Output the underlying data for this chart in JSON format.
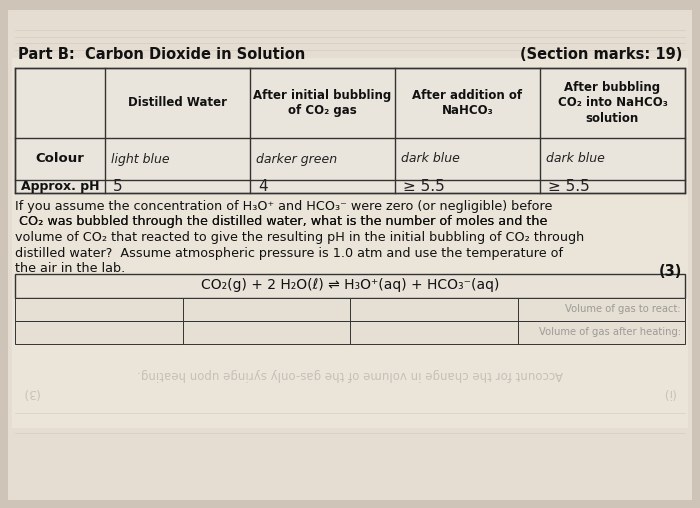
{
  "title_left": "Part B:  Carbon Dioxide in Solution",
  "title_right": "(Section marks: 19)",
  "bg_top": "#d8cfc5",
  "bg_main": "#e8e0d5",
  "bg_paper": "#f0ebe2",
  "table_bg": "#ede8df",
  "line_color": "#333333",
  "header_cols": [
    "",
    "Distilled Water",
    "After initial bubbling\nof CO₂ gas",
    "After addition of\nNaHCO₃",
    "After bubbling\nCO₂ into NaHCO₃\nsolution"
  ],
  "colour_label": "Colour",
  "colour_vals": [
    "light blue",
    "darker green",
    "dark blue",
    "dark blue"
  ],
  "ph_label": "Approx. pH",
  "ph_vals": [
    "5",
    "4",
    "≥ 5.5",
    "≥ 5.5"
  ],
  "q_line1": "If you assume the concentration of H₃O⁺ and HCO₃⁻ were zero (or negligible) before",
  "q_line2a": " CO₂ was bubbled through the distilled water, what is the number of ",
  "q_line2b": "moles",
  "q_line2c": " and the",
  "q_line3a": "volume",
  "q_line3b": " of CO₂ that reacted to give the resulting pH in the initial bubbling of CO₂ through",
  "q_line4": "distilled water?  Assume atmospheric pressure is 1.0 atm and use the temperature of",
  "q_line5": "the air in the lab.",
  "marks": "(3)",
  "equation": "CO₂(g) + 2 H₂O(ℓ) ⇌ H₃O⁺(aq) + HCO₃⁻(aq)",
  "ans_labels": [
    "Volume of gas to react:",
    "Volume of gas after heating:"
  ],
  "faint_text1": "Account for the change in volume of the gas-only syringe upon heating.",
  "faint_note": "(i)",
  "faint_marks": "(3)"
}
